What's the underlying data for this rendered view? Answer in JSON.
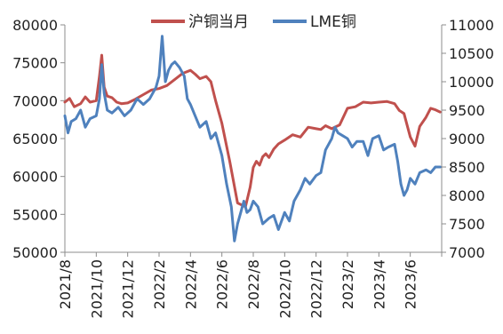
{
  "chart_data": {
    "type": "line",
    "legend": {
      "position": "top"
    },
    "grid": false,
    "x_tick_labels": [
      "2021/8",
      "2021/10",
      "2021/12",
      "2022/2",
      "2022/4",
      "2022/6",
      "2022/8",
      "2022/10",
      "2022/12",
      "2023/2",
      "2023/4",
      "2023/6"
    ],
    "left_axis": {
      "ylim": [
        50000,
        80000
      ],
      "ticks": [
        "50000",
        "55000",
        "60000",
        "65000",
        "70000",
        "75000",
        "80000"
      ]
    },
    "right_axis": {
      "ylim": [
        7000,
        11000
      ],
      "ticks": [
        "7000",
        "7500",
        "8000",
        "8500",
        "9000",
        "9500",
        "10000",
        "10500",
        "11000"
      ]
    },
    "x_range_months": [
      0,
      24
    ],
    "series": [
      {
        "name": "沪铜当月",
        "axis": "left",
        "color": "#c0504d",
        "x": [
          0,
          0.3,
          0.6,
          1,
          1.3,
          1.6,
          2,
          2.2,
          2.35,
          2.5,
          2.7,
          3,
          3.3,
          3.6,
          4,
          4.5,
          5,
          5.5,
          6,
          6.5,
          7,
          7.5,
          8,
          8.3,
          8.6,
          9,
          9.3,
          9.6,
          10,
          10.5,
          11,
          11.5,
          11.8,
          12,
          12.2,
          12.4,
          12.6,
          12.8,
          13,
          13.3,
          13.6,
          14,
          14.5,
          15,
          15.5,
          16,
          16.3,
          16.6,
          17,
          17.5,
          18,
          18.5,
          19,
          19.5,
          20,
          20.5,
          21,
          21.3,
          21.6,
          22,
          22.3,
          22.6,
          23,
          23.3,
          23.6,
          23.9
        ],
        "values": [
          69800,
          70300,
          69200,
          69600,
          70500,
          69800,
          70000,
          73200,
          76000,
          71800,
          70600,
          70400,
          69800,
          69600,
          69700,
          70200,
          70800,
          71400,
          71600,
          72000,
          72800,
          73600,
          74000,
          73500,
          72900,
          73200,
          72500,
          70000,
          67000,
          62000,
          56500,
          56000,
          58600,
          61200,
          62000,
          61500,
          62600,
          63000,
          62500,
          63600,
          64300,
          64800,
          65500,
          65200,
          66500,
          66300,
          66200,
          66700,
          66300,
          66800,
          69000,
          69200,
          69800,
          69700,
          69800,
          69900,
          69600,
          68700,
          68300,
          65200,
          64000,
          66600,
          67800,
          69000,
          68800,
          68500
        ]
      },
      {
        "name": "LME铜",
        "axis": "right",
        "color": "#4f81bd",
        "x": [
          0,
          0.2,
          0.4,
          0.7,
          1,
          1.3,
          1.6,
          2,
          2.2,
          2.35,
          2.5,
          2.7,
          3,
          3.4,
          3.8,
          4.2,
          4.6,
          5,
          5.4,
          5.8,
          6,
          6.2,
          6.4,
          6.6,
          6.8,
          7,
          7.3,
          7.6,
          7.8,
          8,
          8.3,
          8.6,
          9,
          9.3,
          9.6,
          10,
          10.3,
          10.6,
          10.8,
          11,
          11.2,
          11.4,
          11.6,
          11.8,
          12,
          12.3,
          12.6,
          13,
          13.3,
          13.6,
          14,
          14.3,
          14.6,
          15,
          15.3,
          15.6,
          16,
          16.3,
          16.6,
          17,
          17.2,
          17.4,
          17.7,
          18,
          18.3,
          18.6,
          19,
          19.3,
          19.6,
          20,
          20.3,
          20.6,
          21,
          21.2,
          21.4,
          21.6,
          21.8,
          22,
          22.3,
          22.6,
          23,
          23.3,
          23.6,
          23.9
        ],
        "values": [
          9400,
          9100,
          9300,
          9350,
          9500,
          9200,
          9350,
          9400,
          9700,
          10300,
          9800,
          9500,
          9450,
          9550,
          9400,
          9500,
          9700,
          9600,
          9700,
          9900,
          10100,
          10800,
          10000,
          10200,
          10300,
          10350,
          10250,
          10100,
          9700,
          9600,
          9400,
          9200,
          9300,
          9000,
          9100,
          8700,
          8200,
          7800,
          7200,
          7500,
          7700,
          7900,
          7700,
          7750,
          7900,
          7800,
          7500,
          7600,
          7650,
          7400,
          7700,
          7550,
          7900,
          8100,
          8300,
          8200,
          8350,
          8400,
          8800,
          9000,
          9200,
          9100,
          9050,
          9000,
          8850,
          8950,
          8950,
          8700,
          9000,
          9050,
          8800,
          8850,
          8900,
          8600,
          8200,
          8000,
          8100,
          8300,
          8200,
          8400,
          8450,
          8400,
          8500,
          8500
        ]
      }
    ]
  }
}
